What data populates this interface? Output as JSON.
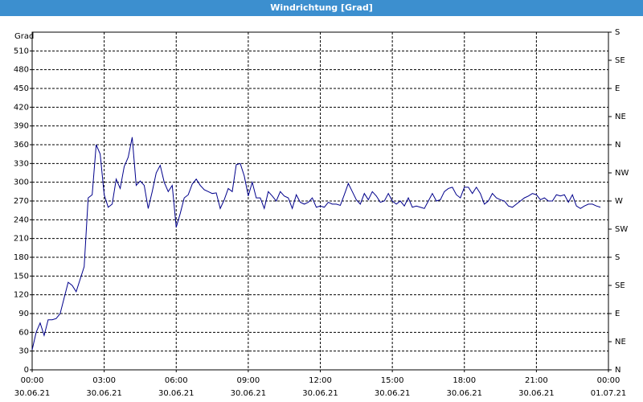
{
  "chart_data": {
    "type": "line",
    "title": "Windrichtung [Grad]",
    "y_label": "Grad",
    "color": "#00008b",
    "grid": true,
    "xlim": [
      "2021-06-30 00:00",
      "2021-07-01 00:00"
    ],
    "xticks": [
      {
        "value": "2021-06-30 00:00",
        "label": [
          "00:00",
          "30.06.21"
        ]
      },
      {
        "value": "2021-06-30 03:00",
        "label": [
          "03:00",
          "30.06.21"
        ]
      },
      {
        "value": "2021-06-30 06:00",
        "label": [
          "06:00",
          "30.06.21"
        ]
      },
      {
        "value": "2021-06-30 09:00",
        "label": [
          "09:00",
          "30.06.21"
        ]
      },
      {
        "value": "2021-06-30 12:00",
        "label": [
          "12:00",
          "30.06.21"
        ]
      },
      {
        "value": "2021-06-30 15:00",
        "label": [
          "15:00",
          "30.06.21"
        ]
      },
      {
        "value": "2021-06-30 18:00",
        "label": [
          "18:00",
          "30.06.21"
        ]
      },
      {
        "value": "2021-06-30 21:00",
        "label": [
          "21:00",
          "30.06.21"
        ]
      },
      {
        "value": "2021-07-01 00:00",
        "label": [
          "00:00",
          "01.07.21"
        ]
      }
    ],
    "ylim": [
      0,
      540
    ],
    "yticks": [
      0,
      30,
      60,
      90,
      120,
      150,
      180,
      210,
      240,
      270,
      300,
      330,
      360,
      390,
      420,
      450,
      480,
      510
    ],
    "y2lim": [
      0,
      540
    ],
    "y2ticks": [
      {
        "value": 0,
        "label": "N"
      },
      {
        "value": 45,
        "label": "NE"
      },
      {
        "value": 90,
        "label": "E"
      },
      {
        "value": 135,
        "label": "SE"
      },
      {
        "value": 180,
        "label": "S"
      },
      {
        "value": 225,
        "label": "SW"
      },
      {
        "value": 270,
        "label": "W"
      },
      {
        "value": 315,
        "label": "NW"
      },
      {
        "value": 360,
        "label": "N"
      },
      {
        "value": 405,
        "label": "NE"
      },
      {
        "value": 450,
        "label": "E"
      },
      {
        "value": 495,
        "label": "SE"
      },
      {
        "value": 540,
        "label": "S"
      }
    ],
    "x": [
      "2021-06-30 00:00",
      "2021-06-30 00:10",
      "2021-06-30 00:20",
      "2021-06-30 00:30",
      "2021-06-30 00:40",
      "2021-06-30 00:50",
      "2021-06-30 01:00",
      "2021-06-30 01:10",
      "2021-06-30 01:20",
      "2021-06-30 01:30",
      "2021-06-30 01:40",
      "2021-06-30 01:50",
      "2021-06-30 02:00",
      "2021-06-30 02:10",
      "2021-06-30 02:20",
      "2021-06-30 02:30",
      "2021-06-30 02:40",
      "2021-06-30 02:50",
      "2021-06-30 03:00",
      "2021-06-30 03:10",
      "2021-06-30 03:20",
      "2021-06-30 03:30",
      "2021-06-30 03:40",
      "2021-06-30 03:50",
      "2021-06-30 04:00",
      "2021-06-30 04:10",
      "2021-06-30 04:20",
      "2021-06-30 04:30",
      "2021-06-30 04:40",
      "2021-06-30 04:50",
      "2021-06-30 05:00",
      "2021-06-30 05:10",
      "2021-06-30 05:20",
      "2021-06-30 05:30",
      "2021-06-30 05:40",
      "2021-06-30 05:50",
      "2021-06-30 06:00",
      "2021-06-30 06:10",
      "2021-06-30 06:20",
      "2021-06-30 06:30",
      "2021-06-30 06:40",
      "2021-06-30 06:50",
      "2021-06-30 07:00",
      "2021-06-30 07:10",
      "2021-06-30 07:20",
      "2021-06-30 07:30",
      "2021-06-30 07:40",
      "2021-06-30 07:50",
      "2021-06-30 08:00",
      "2021-06-30 08:10",
      "2021-06-30 08:20",
      "2021-06-30 08:30",
      "2021-06-30 08:40",
      "2021-06-30 08:50",
      "2021-06-30 09:00",
      "2021-06-30 09:10",
      "2021-06-30 09:20",
      "2021-06-30 09:30",
      "2021-06-30 09:40",
      "2021-06-30 09:50",
      "2021-06-30 10:00",
      "2021-06-30 10:10",
      "2021-06-30 10:20",
      "2021-06-30 10:30",
      "2021-06-30 10:40",
      "2021-06-30 10:50",
      "2021-06-30 11:00",
      "2021-06-30 11:10",
      "2021-06-30 11:20",
      "2021-06-30 11:30",
      "2021-06-30 11:40",
      "2021-06-30 11:50",
      "2021-06-30 12:00",
      "2021-06-30 12:10",
      "2021-06-30 12:20",
      "2021-06-30 12:30",
      "2021-06-30 12:40",
      "2021-06-30 12:50",
      "2021-06-30 13:00",
      "2021-06-30 13:10",
      "2021-06-30 13:20",
      "2021-06-30 13:30",
      "2021-06-30 13:40",
      "2021-06-30 13:50",
      "2021-06-30 14:00",
      "2021-06-30 14:10",
      "2021-06-30 14:20",
      "2021-06-30 14:30",
      "2021-06-30 14:40",
      "2021-06-30 14:50",
      "2021-06-30 15:00",
      "2021-06-30 15:10",
      "2021-06-30 15:20",
      "2021-06-30 15:30",
      "2021-06-30 15:40",
      "2021-06-30 15:50",
      "2021-06-30 16:00",
      "2021-06-30 16:10",
      "2021-06-30 16:20",
      "2021-06-30 16:30",
      "2021-06-30 16:40",
      "2021-06-30 16:50",
      "2021-06-30 17:00",
      "2021-06-30 17:10",
      "2021-06-30 17:20",
      "2021-06-30 17:30",
      "2021-06-30 17:40",
      "2021-06-30 17:50",
      "2021-06-30 18:00",
      "2021-06-30 18:10",
      "2021-06-30 18:20",
      "2021-06-30 18:30",
      "2021-06-30 18:40",
      "2021-06-30 18:50",
      "2021-06-30 19:00",
      "2021-06-30 19:10",
      "2021-06-30 19:20",
      "2021-06-30 19:30",
      "2021-06-30 19:40",
      "2021-06-30 19:50",
      "2021-06-30 20:00",
      "2021-06-30 20:10",
      "2021-06-30 20:20",
      "2021-06-30 20:30",
      "2021-06-30 20:40",
      "2021-06-30 20:50",
      "2021-06-30 21:00",
      "2021-06-30 21:10",
      "2021-06-30 21:20",
      "2021-06-30 21:30",
      "2021-06-30 21:40",
      "2021-06-30 21:50",
      "2021-06-30 22:00",
      "2021-06-30 22:10",
      "2021-06-30 22:20",
      "2021-06-30 22:30",
      "2021-06-30 22:40",
      "2021-06-30 22:50",
      "2021-06-30 23:00",
      "2021-06-30 23:10",
      "2021-06-30 23:20",
      "2021-06-30 23:30",
      "2021-06-30 23:40"
    ],
    "values": [
      32,
      60,
      75,
      55,
      80,
      80,
      82,
      90,
      115,
      140,
      135,
      125,
      145,
      165,
      275,
      280,
      360,
      345,
      280,
      260,
      265,
      305,
      290,
      325,
      340,
      372,
      295,
      302,
      295,
      258,
      285,
      315,
      327,
      300,
      285,
      295,
      228,
      250,
      275,
      280,
      297,
      305,
      295,
      288,
      285,
      282,
      283,
      258,
      272,
      290,
      285,
      328,
      330,
      310,
      278,
      300,
      275,
      275,
      258,
      285,
      278,
      270,
      285,
      278,
      275,
      258,
      280,
      268,
      265,
      268,
      275,
      260,
      262,
      260,
      268,
      265,
      265,
      263,
      280,
      298,
      285,
      272,
      265,
      282,
      272,
      285,
      278,
      268,
      270,
      282,
      270,
      265,
      270,
      262,
      275,
      260,
      262,
      260,
      258,
      270,
      282,
      270,
      272,
      285,
      290,
      292,
      280,
      275,
      292,
      292,
      282,
      292,
      282,
      265,
      270,
      282,
      275,
      272,
      270,
      262,
      260,
      265,
      270,
      275,
      278,
      282,
      280,
      272,
      275,
      270,
      270,
      280,
      278,
      280,
      268,
      280,
      262,
      258,
      262,
      265,
      265,
      262,
      260
    ]
  }
}
